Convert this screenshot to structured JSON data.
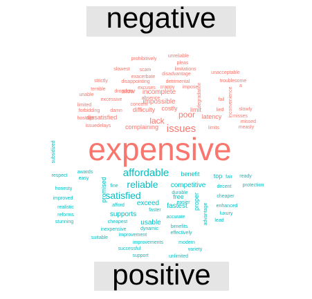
{
  "colors": {
    "negative": "#f8766d",
    "positive": "#00bfc4",
    "bar": "#e5e5e5"
  },
  "chart_data": {
    "type": "wordcloud",
    "groups": [
      "negative",
      "positive"
    ],
    "labels": {
      "negative": "negative",
      "positive": "positive"
    },
    "words": [
      {
        "w": "expensive",
        "g": "negative",
        "s": 46
      },
      {
        "w": "issues",
        "g": "negative",
        "s": 15
      },
      {
        "w": "lack",
        "g": "negative",
        "s": 12
      },
      {
        "w": "poor",
        "g": "negative",
        "s": 12
      },
      {
        "w": "incomplete",
        "g": "negative",
        "s": 10
      },
      {
        "w": "impossible",
        "g": "negative",
        "s": 10
      },
      {
        "w": "dissatisfied",
        "g": "negative",
        "s": 9
      },
      {
        "w": "difficulty",
        "g": "negative",
        "s": 9
      },
      {
        "w": "complaining",
        "g": "negative",
        "s": 9
      },
      {
        "w": "slow",
        "g": "negative",
        "s": 9
      },
      {
        "w": "costly",
        "g": "negative",
        "s": 9
      },
      {
        "w": "limit",
        "g": "negative",
        "s": 9
      },
      {
        "w": "latency",
        "g": "negative",
        "s": 9
      },
      {
        "w": "prohibitively",
        "g": "negative",
        "s": 7
      },
      {
        "w": "unreliable",
        "g": "negative",
        "s": 7
      },
      {
        "w": "pleas",
        "g": "negative",
        "s": 7
      },
      {
        "w": "limitations",
        "g": "negative",
        "s": 7
      },
      {
        "w": "slowest",
        "g": "negative",
        "s": 7
      },
      {
        "w": "scam",
        "g": "negative",
        "s": 7
      },
      {
        "w": "disadvantage",
        "g": "negative",
        "s": 7
      },
      {
        "w": "exacerbate",
        "g": "negative",
        "s": 7
      },
      {
        "w": "unacceptable",
        "g": "negative",
        "s": 7
      },
      {
        "w": "strictly",
        "g": "negative",
        "s": 7
      },
      {
        "w": "disappointing",
        "g": "negative",
        "s": 7
      },
      {
        "w": "detrimental",
        "g": "negative",
        "s": 7
      },
      {
        "w": "troublesome",
        "g": "negative",
        "s": 7
      },
      {
        "w": "excuses",
        "g": "negative",
        "s": 7
      },
      {
        "w": "crappy",
        "g": "negative",
        "s": 7
      },
      {
        "w": "impose",
        "g": "negative",
        "s": 7
      },
      {
        "w": "terrible",
        "g": "negative",
        "s": 7
      },
      {
        "w": "unable",
        "g": "negative",
        "s": 7
      },
      {
        "w": "dropouts",
        "g": "negative",
        "s": 7
      },
      {
        "w": "excessive",
        "g": "negative",
        "s": 7
      },
      {
        "w": "absence",
        "g": "negative",
        "s": 7
      },
      {
        "w": "concern",
        "g": "negative",
        "s": 7
      },
      {
        "w": "limited",
        "g": "negative",
        "s": 7
      },
      {
        "w": "forbidding",
        "g": "negative",
        "s": 7
      },
      {
        "w": "damn",
        "g": "negative",
        "s": 7
      },
      {
        "w": "hostage",
        "g": "negative",
        "s": 7
      },
      {
        "w": "issuedelays",
        "g": "negative",
        "s": 7
      },
      {
        "w": "limits",
        "g": "negative",
        "s": 7
      },
      {
        "w": "degradation",
        "g": "negative",
        "s": 7
      },
      {
        "w": "fail",
        "g": "negative",
        "s": 7
      },
      {
        "w": "lied",
        "g": "negative",
        "s": 7
      },
      {
        "w": "misses",
        "g": "negative",
        "s": 7
      },
      {
        "w": "missed",
        "g": "negative",
        "s": 7
      },
      {
        "w": "measly",
        "g": "negative",
        "s": 7
      },
      {
        "w": "slowly",
        "g": "negative",
        "s": 7
      },
      {
        "w": "inconvenience",
        "g": "negative",
        "s": 7
      },
      {
        "w": "a",
        "g": "negative",
        "s": 7
      },
      {
        "w": "affordable",
        "g": "positive",
        "s": 15
      },
      {
        "w": "reliable",
        "g": "positive",
        "s": 14
      },
      {
        "w": "satisfied",
        "g": "positive",
        "s": 14
      },
      {
        "w": "competitive",
        "g": "positive",
        "s": 10
      },
      {
        "w": "fastest",
        "g": "positive",
        "s": 10
      },
      {
        "w": "exceed",
        "g": "positive",
        "s": 10
      },
      {
        "w": "supports",
        "g": "positive",
        "s": 10
      },
      {
        "w": "usable",
        "g": "positive",
        "s": 10
      },
      {
        "w": "benefit",
        "g": "positive",
        "s": 9
      },
      {
        "w": "free",
        "g": "positive",
        "s": 9
      },
      {
        "w": "top",
        "g": "positive",
        "s": 9
      },
      {
        "w": "promised",
        "g": "positive",
        "s": 9
      },
      {
        "w": "proper",
        "g": "positive",
        "s": 9
      },
      {
        "w": "fair",
        "g": "positive",
        "s": 7
      },
      {
        "w": "ready",
        "g": "positive",
        "s": 7
      },
      {
        "w": "protection",
        "g": "positive",
        "s": 7
      },
      {
        "w": "decent",
        "g": "positive",
        "s": 7
      },
      {
        "w": "cheaper",
        "g": "positive",
        "s": 7
      },
      {
        "w": "enhanced",
        "g": "positive",
        "s": 7
      },
      {
        "w": "luxury",
        "g": "positive",
        "s": 7
      },
      {
        "w": "lead",
        "g": "positive",
        "s": 7
      },
      {
        "w": "advantage",
        "g": "positive",
        "s": 7
      },
      {
        "w": "durable",
        "g": "positive",
        "s": 7
      },
      {
        "w": "easier",
        "g": "positive",
        "s": 7
      },
      {
        "w": "faster",
        "g": "positive",
        "s": 7
      },
      {
        "w": "accurate",
        "g": "positive",
        "s": 7
      },
      {
        "w": "benefits",
        "g": "positive",
        "s": 7
      },
      {
        "w": "effectively",
        "g": "positive",
        "s": 7
      },
      {
        "w": "modern",
        "g": "positive",
        "s": 7
      },
      {
        "w": "variety",
        "g": "positive",
        "s": 7
      },
      {
        "w": "unlimited",
        "g": "positive",
        "s": 7
      },
      {
        "w": "support",
        "g": "positive",
        "s": 7
      },
      {
        "w": "successful",
        "g": "positive",
        "s": 7
      },
      {
        "w": "improvements",
        "g": "positive",
        "s": 7
      },
      {
        "w": "improvement",
        "g": "positive",
        "s": 7
      },
      {
        "w": "dynamic",
        "g": "positive",
        "s": 7
      },
      {
        "w": "inexpensive",
        "g": "positive",
        "s": 7
      },
      {
        "w": "cheapest",
        "g": "positive",
        "s": 7
      },
      {
        "w": "afford",
        "g": "positive",
        "s": 7
      },
      {
        "w": "fine",
        "g": "positive",
        "s": 7
      },
      {
        "w": "awards",
        "g": "positive",
        "s": 7
      },
      {
        "w": "easy",
        "g": "positive",
        "s": 7
      },
      {
        "w": "respect",
        "g": "positive",
        "s": 7
      },
      {
        "w": "honesty",
        "g": "positive",
        "s": 7
      },
      {
        "w": "improved",
        "g": "positive",
        "s": 7
      },
      {
        "w": "realistic",
        "g": "positive",
        "s": 7
      },
      {
        "w": "reforms",
        "g": "positive",
        "s": 7
      },
      {
        "w": "stunning",
        "g": "positive",
        "s": 7
      },
      {
        "w": "suitable",
        "g": "positive",
        "s": 7
      },
      {
        "w": "subsidized",
        "g": "positive",
        "s": 7
      }
    ]
  }
}
